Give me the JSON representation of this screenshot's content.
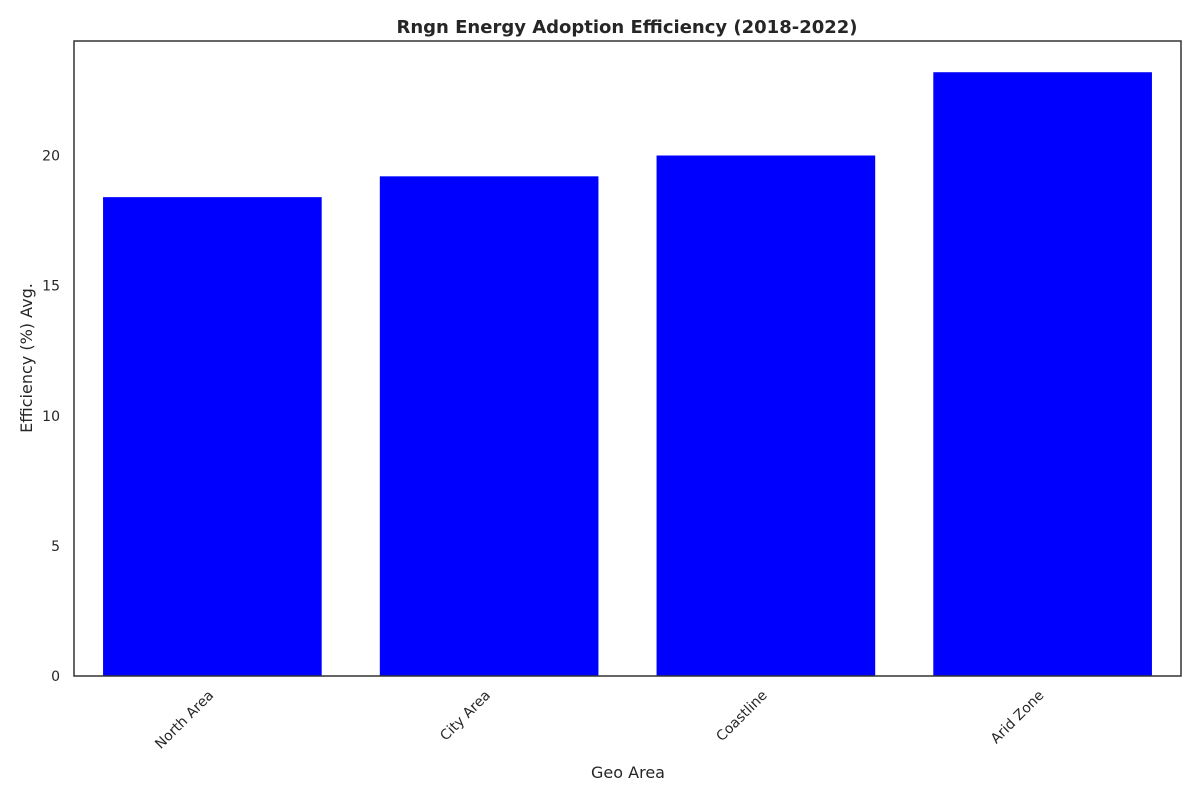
{
  "chart_data": {
    "type": "bar",
    "title": "Rngn Energy Adoption Efficiency (2018-2022)",
    "xlabel": "Geo Area",
    "ylabel": "Efficiency (%) Avg.",
    "categories": [
      "North Area",
      "City Area",
      "Coastline",
      "Arid Zone"
    ],
    "values": [
      18.4,
      19.2,
      20.0,
      23.2
    ],
    "ylim": [
      0,
      24.4
    ],
    "yticks": [
      0,
      5,
      10,
      15,
      20
    ],
    "grid": false,
    "legend": "none",
    "bar_color": "#0000ff",
    "xtick_rotation": "45"
  }
}
